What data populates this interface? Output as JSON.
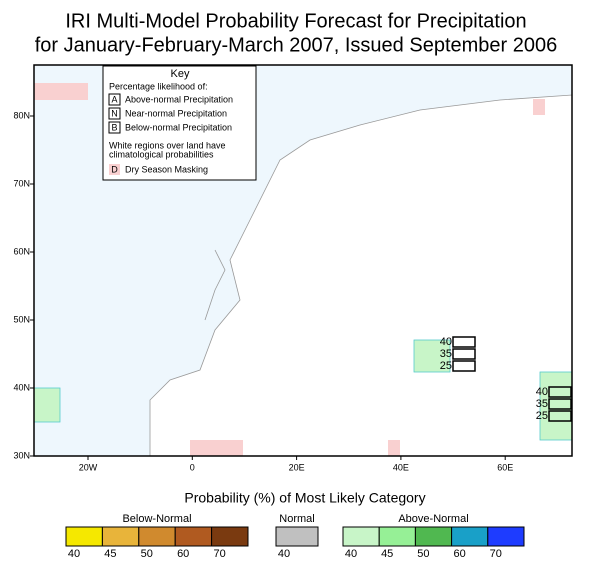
{
  "title": [
    "IRI Multi-Model Probability Forecast for Precipitation",
    "for January-February-March 2007, Issued September 2006"
  ],
  "key": {
    "heading": "Key",
    "subheading": "Percentage likelihood of:",
    "items": [
      {
        "letter": "A",
        "text": "Above-normal Precipitation"
      },
      {
        "letter": "N",
        "text": "Near-normal Precipitation"
      },
      {
        "letter": "B",
        "text": "Below-normal Precipitation"
      }
    ],
    "note": [
      "White regions over land have",
      "climatological probabilities"
    ],
    "dry": {
      "letter": "D",
      "text": "Dry Season Masking"
    }
  },
  "latitude_labels": [
    "80N",
    "70N",
    "60N",
    "50N",
    "40N",
    "30N"
  ],
  "longitude_labels": [
    "20W",
    "0",
    "20E",
    "40E",
    "60E"
  ],
  "annotations": [
    [
      40,
      35,
      25
    ],
    [
      40,
      35,
      25
    ]
  ],
  "legend": {
    "title": "Probability (%) of Most Likely Category",
    "groups": [
      {
        "name": "Below-Normal",
        "bins": [
          {
            "label": 40,
            "color": "#f5e800"
          },
          {
            "label": 45,
            "color": "#e8b43a"
          },
          {
            "label": 50,
            "color": "#d08a2e"
          },
          {
            "label": 60,
            "color": "#b05a20"
          },
          {
            "label": 70,
            "color": "#7a3a10"
          }
        ]
      },
      {
        "name": "Normal",
        "bins": [
          {
            "label": 40,
            "color": "#c0c0c0"
          }
        ]
      },
      {
        "name": "Above-Normal",
        "bins": [
          {
            "label": 40,
            "color": "#c8f5c8"
          },
          {
            "label": 45,
            "color": "#96f096"
          },
          {
            "label": 50,
            "color": "#50b850"
          },
          {
            "label": 60,
            "color": "#19a0c8"
          },
          {
            "label": 70,
            "color": "#1e3cff"
          }
        ]
      }
    ]
  }
}
